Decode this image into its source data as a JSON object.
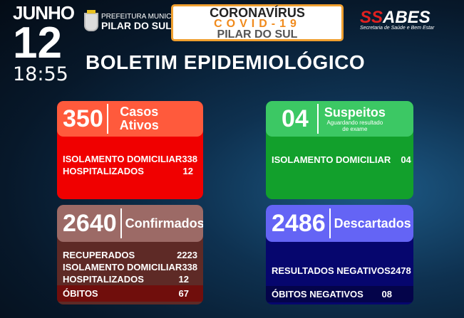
{
  "header": {
    "month": "JUNHO",
    "day": "12",
    "time": "18:55",
    "prefeitura": {
      "line1": "PREFEITURA MUNICIPAL",
      "line2": "PILAR DO SUL"
    },
    "banner": {
      "line1": "CORONAVÍRUS",
      "line2": "COVID-19",
      "line3": "PILAR DO SUL"
    },
    "logo": {
      "prefix": "SS",
      "name": "ABES",
      "subtitle": "Secretaria de Saúde e Bem Estar"
    },
    "title": "BOLETIM EPIDEMIOLÓGICO"
  },
  "cards": {
    "ativos": {
      "number": "350",
      "label1": "Casos",
      "label2": "Ativos",
      "color": "#ff5a3c",
      "body_color": "#f00000",
      "rows": [
        {
          "label": "ISOLAMENTO DOMICILIAR",
          "value": "338"
        },
        {
          "label": "HOSPITALIZADOS",
          "value": "12"
        }
      ]
    },
    "suspeitos": {
      "number": "04",
      "label": "Suspeitos",
      "sub1": "Aguardando resultado",
      "sub2": "de exame",
      "color": "#3cc864",
      "body_color": "#12a02c",
      "rows": [
        {
          "label": "ISOLAMENTO DOMICILIAR",
          "value": "04"
        }
      ]
    },
    "confirmados": {
      "number": "2640",
      "label": "Confirmados",
      "color": "#9c6a66",
      "body_color": "#5e2a26",
      "rows": [
        {
          "label": "RECUPERADOS",
          "value": "2223"
        },
        {
          "label": "ISOLAMENTO DOMICILIAR",
          "value": "338"
        },
        {
          "label": "HOSPITALIZADOS",
          "value": "12"
        }
      ],
      "obitos": {
        "label": "ÓBITOS",
        "value": "67"
      }
    },
    "descartados": {
      "number": "2486",
      "label": "Descartados",
      "color": "#6464f5",
      "body_color": "#06066e",
      "rows": [
        {
          "label": "RESULTADOS NEGATIVOS",
          "value": "2478"
        }
      ],
      "obitos": {
        "label": "ÓBITOS NEGATIVOS",
        "value": "08"
      }
    }
  }
}
